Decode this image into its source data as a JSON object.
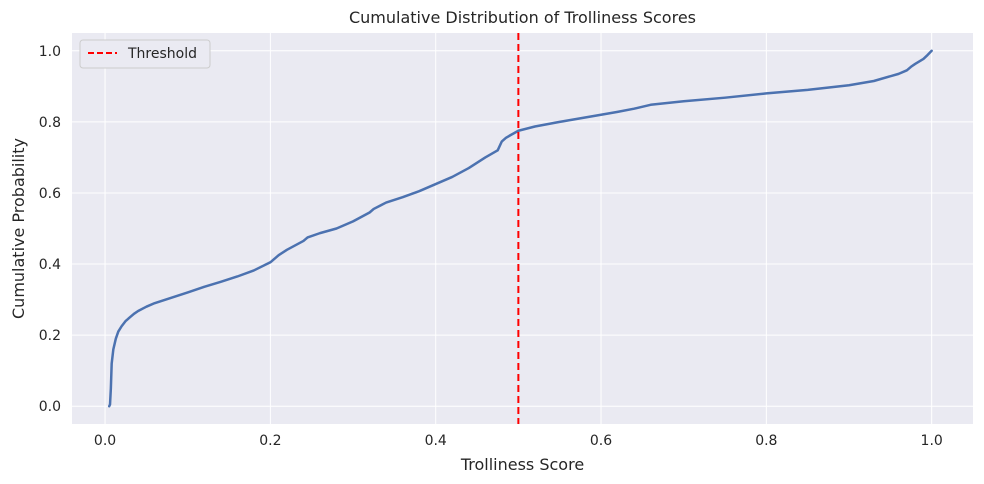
{
  "chart_data": {
    "type": "line",
    "title": "Cumulative Distribution of Trolliness Scores",
    "xlabel": "Trolliness Score",
    "ylabel": "Cumulative Probability",
    "xlim": [
      -0.04,
      1.05
    ],
    "ylim": [
      -0.05,
      1.05
    ],
    "xticks": [
      0.0,
      0.2,
      0.4,
      0.6,
      0.8,
      1.0
    ],
    "xtick_labels": [
      "0.0",
      "0.2",
      "0.4",
      "0.6",
      "0.8",
      "1.0"
    ],
    "yticks": [
      0.0,
      0.2,
      0.4,
      0.6,
      0.8,
      1.0
    ],
    "ytick_labels": [
      "0.0",
      "0.2",
      "0.4",
      "0.6",
      "0.8",
      "1.0"
    ],
    "grid": true,
    "legend_position": "top-left",
    "colors": {
      "background": "#EAEAF2",
      "grid": "#FFFFFF",
      "series": "#4C72B0",
      "threshold": "#FF0000"
    },
    "series": [
      {
        "x": [
          0.005,
          0.006,
          0.007,
          0.008,
          0.01,
          0.013,
          0.016,
          0.02,
          0.025,
          0.03,
          0.035,
          0.04,
          0.05,
          0.06,
          0.08,
          0.1,
          0.12,
          0.14,
          0.16,
          0.18,
          0.2,
          0.21,
          0.22,
          0.24,
          0.245,
          0.26,
          0.28,
          0.3,
          0.32,
          0.325,
          0.34,
          0.36,
          0.38,
          0.4,
          0.42,
          0.44,
          0.46,
          0.475,
          0.48,
          0.485,
          0.49,
          0.5,
          0.52,
          0.55,
          0.6,
          0.62,
          0.64,
          0.66,
          0.7,
          0.75,
          0.8,
          0.85,
          0.9,
          0.93,
          0.96,
          0.97,
          0.975,
          0.98,
          0.99,
          0.995,
          1.0
        ],
        "y": [
          0.0,
          0.005,
          0.05,
          0.12,
          0.16,
          0.19,
          0.21,
          0.225,
          0.24,
          0.25,
          0.26,
          0.268,
          0.28,
          0.29,
          0.305,
          0.32,
          0.336,
          0.35,
          0.365,
          0.382,
          0.405,
          0.425,
          0.44,
          0.465,
          0.475,
          0.487,
          0.5,
          0.52,
          0.545,
          0.555,
          0.573,
          0.588,
          0.605,
          0.625,
          0.645,
          0.67,
          0.7,
          0.72,
          0.745,
          0.755,
          0.762,
          0.775,
          0.787,
          0.8,
          0.82,
          0.828,
          0.837,
          0.848,
          0.858,
          0.868,
          0.88,
          0.89,
          0.903,
          0.915,
          0.935,
          0.945,
          0.955,
          0.963,
          0.977,
          0.988,
          1.0
        ]
      }
    ],
    "threshold": {
      "label": "Threshold",
      "x": 0.5
    }
  }
}
